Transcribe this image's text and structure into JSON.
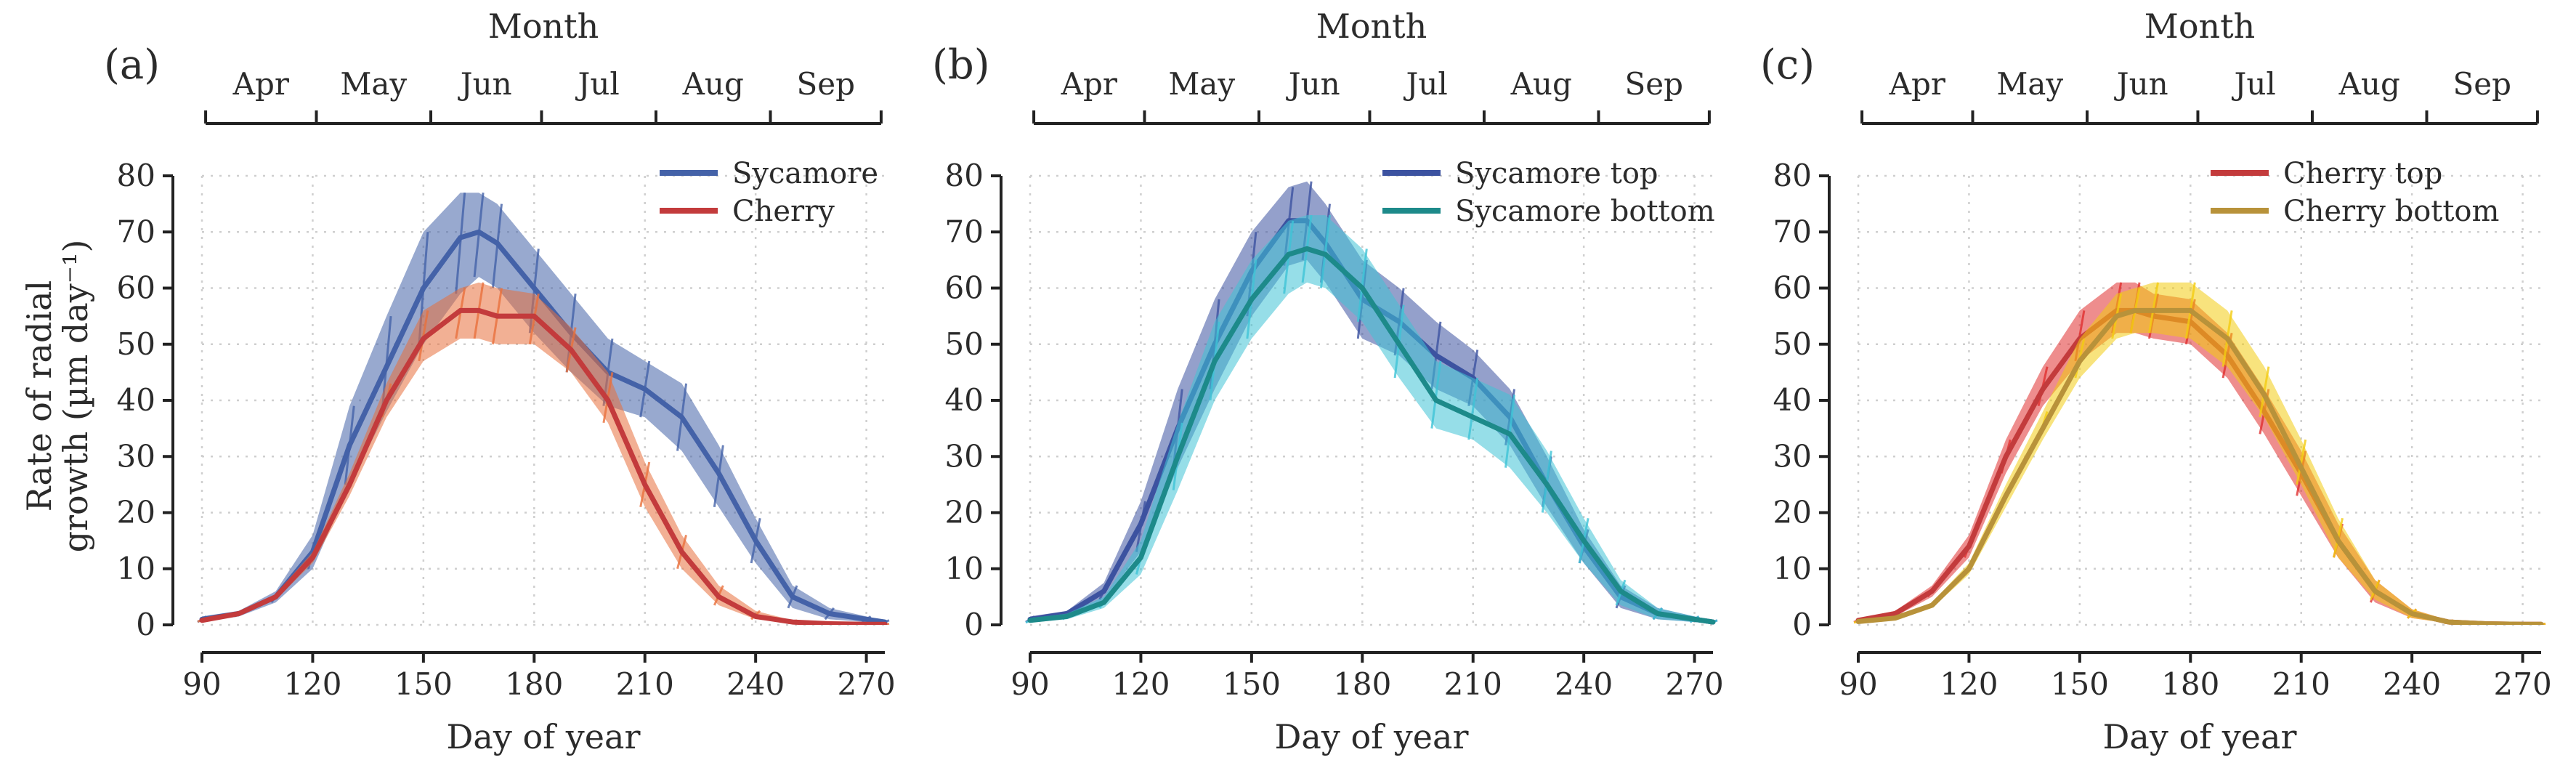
{
  "figure": {
    "ylabel": "Rate of radial growth (µm day⁻¹)",
    "ylabel_line1": "Rate of radial",
    "ylabel_line2": "growth (µm day⁻¹)"
  },
  "chart_data": [
    {
      "type": "line",
      "panel_label": "(a)",
      "xlabel": "Day of year",
      "ylabel": "Rate of radial growth (µm day⁻¹)",
      "top_axis_label": "Month",
      "months": [
        "Apr",
        "May",
        "Jun",
        "Jul",
        "Aug",
        "Sep"
      ],
      "month_boundaries": [
        91,
        121,
        152,
        182,
        213,
        244,
        274
      ],
      "xlim": [
        90,
        275
      ],
      "ylim": [
        0,
        80
      ],
      "xticks": [
        90,
        120,
        150,
        180,
        210,
        240,
        270
      ],
      "yticks": [
        0,
        10,
        20,
        30,
        40,
        50,
        60,
        70,
        80
      ],
      "grid": true,
      "legend_position": "top-right",
      "x": [
        90,
        100,
        110,
        120,
        130,
        140,
        150,
        160,
        165,
        170,
        180,
        190,
        200,
        210,
        220,
        230,
        240,
        250,
        260,
        270,
        275
      ],
      "series": [
        {
          "name": "Sycamore",
          "color": "#4462a8",
          "band_color": "#4462a8",
          "values": [
            1,
            2,
            5,
            13,
            32,
            46,
            60,
            69,
            70,
            68,
            60,
            52,
            45,
            42,
            37,
            27,
            15,
            5,
            2,
            1,
            0.5
          ],
          "lower": [
            0.5,
            1.5,
            4,
            10,
            25,
            38,
            50,
            59,
            62,
            60,
            52,
            45,
            39,
            37,
            31,
            21,
            11,
            3,
            1,
            0.5,
            0.3
          ],
          "upper": [
            1.5,
            2.5,
            6,
            16,
            39,
            55,
            70,
            77,
            77,
            75,
            67,
            59,
            51,
            47,
            43,
            32,
            19,
            7,
            3,
            1.5,
            0.8
          ]
        },
        {
          "name": "Cherry",
          "color": "#c33b3c",
          "band_color": "#e8703c",
          "values": [
            0.8,
            2,
            5,
            12,
            25,
            40,
            51,
            56,
            56,
            55,
            55,
            49,
            40,
            25,
            13,
            5,
            1.5,
            0.5,
            0.2,
            0.1,
            0.1
          ],
          "lower": [
            0.6,
            1.7,
            4.5,
            11,
            23,
            37,
            47,
            51,
            51,
            50,
            50,
            45,
            36,
            21,
            10,
            3.5,
            1,
            0.3,
            0.1,
            0,
            0
          ],
          "upper": [
            1,
            2.3,
            5.5,
            13,
            27,
            43,
            56,
            60,
            61,
            60,
            59,
            53,
            45,
            29,
            16,
            7,
            2.5,
            0.8,
            0.3,
            0.2,
            0.2
          ]
        }
      ]
    },
    {
      "type": "line",
      "panel_label": "(b)",
      "xlabel": "Day of year",
      "ylabel": "Rate of radial growth (µm day⁻¹)",
      "top_axis_label": "Month",
      "months": [
        "Apr",
        "May",
        "Jun",
        "Jul",
        "Aug",
        "Sep"
      ],
      "month_boundaries": [
        91,
        121,
        152,
        182,
        213,
        244,
        274
      ],
      "xlim": [
        90,
        275
      ],
      "ylim": [
        0,
        80
      ],
      "xticks": [
        90,
        120,
        150,
        180,
        210,
        240,
        270
      ],
      "yticks": [
        0,
        10,
        20,
        30,
        40,
        50,
        60,
        70,
        80
      ],
      "grid": true,
      "legend_position": "top-right",
      "x": [
        90,
        100,
        110,
        120,
        130,
        140,
        150,
        160,
        165,
        170,
        180,
        190,
        200,
        210,
        220,
        230,
        240,
        250,
        260,
        270,
        275
      ],
      "series": [
        {
          "name": "Sycamore top",
          "color": "#3c52a0",
          "band_color": "#3c52a0",
          "values": [
            1,
            2,
            6,
            18,
            35,
            50,
            63,
            72,
            72,
            68,
            58,
            54,
            48,
            44,
            37,
            25,
            14,
            5,
            2,
            1,
            0.5
          ],
          "lower": [
            0.5,
            1.5,
            4.5,
            13,
            28,
            42,
            55,
            64,
            65,
            61,
            51,
            48,
            42,
            39,
            32,
            21,
            11,
            3,
            1,
            0.5,
            0.3
          ],
          "upper": [
            1.5,
            2.5,
            7.5,
            22,
            42,
            58,
            70,
            78,
            79,
            75,
            65,
            60,
            54,
            49,
            42,
            30,
            17,
            7,
            3,
            1.5,
            0.8
          ]
        },
        {
          "name": "Sycamore bottom",
          "color": "#1d8a8a",
          "band_color": "#3fc3d6",
          "values": [
            0.8,
            1.5,
            4,
            12,
            30,
            47,
            58,
            66,
            67,
            66,
            60,
            50,
            40,
            37,
            34,
            25,
            15,
            6,
            2,
            1,
            0.5
          ],
          "lower": [
            0.4,
            1,
            3,
            9,
            24,
            40,
            51,
            59,
            61,
            60,
            54,
            44,
            35,
            33,
            28,
            20,
            11,
            3.5,
            1,
            0.5,
            0.3
          ],
          "upper": [
            1.2,
            2,
            5,
            15,
            36,
            54,
            65,
            72,
            73,
            73,
            67,
            57,
            47,
            44,
            41,
            31,
            19,
            8,
            3,
            1.5,
            0.8
          ]
        }
      ]
    },
    {
      "type": "line",
      "panel_label": "(c)",
      "xlabel": "Day of year",
      "ylabel": "Rate of radial growth (µm day⁻¹)",
      "top_axis_label": "Month",
      "months": [
        "Apr",
        "May",
        "Jun",
        "Jul",
        "Aug",
        "Sep"
      ],
      "month_boundaries": [
        91,
        121,
        152,
        182,
        213,
        244,
        274
      ],
      "xlim": [
        90,
        275
      ],
      "ylim": [
        0,
        80
      ],
      "xticks": [
        90,
        120,
        150,
        180,
        210,
        240,
        270
      ],
      "yticks": [
        0,
        10,
        20,
        30,
        40,
        50,
        60,
        70,
        80
      ],
      "grid": true,
      "legend_position": "top-right",
      "x": [
        90,
        100,
        110,
        120,
        130,
        140,
        150,
        160,
        165,
        170,
        180,
        190,
        200,
        210,
        220,
        230,
        240,
        250,
        260,
        270,
        275
      ],
      "series": [
        {
          "name": "Cherry top",
          "color": "#c33b3c",
          "band_color": "#e02f2f",
          "values": [
            0.8,
            2,
            6,
            14,
            30,
            42,
            51,
            56,
            56,
            55,
            54,
            48,
            38,
            27,
            15,
            6,
            2,
            0.5,
            0.2,
            0.1,
            0.1
          ],
          "lower": [
            0.5,
            1.5,
            5,
            12,
            27,
            39,
            47,
            52,
            52,
            51,
            50,
            44,
            34,
            23,
            12,
            4,
            1.2,
            0.3,
            0.1,
            0,
            0
          ],
          "upper": [
            1.1,
            2.5,
            7,
            16,
            33,
            46,
            56,
            61,
            61,
            59,
            58,
            52,
            42,
            31,
            18,
            8,
            2.8,
            0.8,
            0.3,
            0.2,
            0.2
          ]
        },
        {
          "name": "Cherry bottom",
          "color": "#b8923a",
          "band_color": "#f2cc12",
          "values": [
            0.6,
            1.2,
            3.5,
            10,
            23,
            35,
            47,
            55,
            56,
            56,
            56,
            51,
            41,
            28,
            15,
            6,
            2,
            0.5,
            0.2,
            0.1,
            0.1
          ],
          "lower": [
            0.4,
            1,
            3,
            9,
            21,
            33,
            44,
            51,
            52,
            52,
            51,
            46,
            37,
            25,
            12,
            4.5,
            1.2,
            0.3,
            0.1,
            0,
            0
          ],
          "upper": [
            0.8,
            1.5,
            4,
            11,
            25,
            38,
            51,
            59,
            60,
            61,
            61,
            56,
            46,
            33,
            19,
            8,
            2.8,
            0.8,
            0.3,
            0.2,
            0.2
          ]
        }
      ]
    }
  ]
}
